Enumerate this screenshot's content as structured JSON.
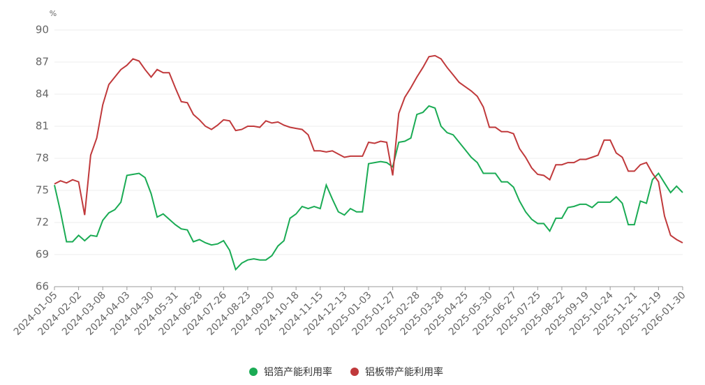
{
  "chart_data": {
    "type": "line",
    "y_unit": "%",
    "categories": [
      "2024-01-05",
      null,
      null,
      null,
      "2024-02-02",
      null,
      null,
      null,
      "2024-03-08",
      null,
      null,
      null,
      "2024-04-03",
      null,
      null,
      null,
      "2024-04-30",
      null,
      null,
      null,
      "2024-05-31",
      null,
      null,
      null,
      "2024-06-28",
      null,
      null,
      null,
      "2024-07-26",
      null,
      null,
      null,
      "2024-08-23",
      null,
      null,
      null,
      "2024-09-20",
      null,
      null,
      null,
      "2024-10-18",
      null,
      null,
      null,
      "2024-11-15",
      null,
      null,
      null,
      "2024-12-13",
      null,
      null,
      null,
      "2025-01-03",
      null,
      null,
      null,
      "2025-01-27",
      null,
      null,
      null,
      "2025-02-28",
      null,
      null,
      null,
      "2025-03-28",
      null,
      null,
      null,
      "2025-04-25",
      null,
      null,
      null,
      "2025-05-30",
      null,
      null,
      null,
      "2025-06-27",
      null,
      null,
      null,
      "2025-07-25",
      null,
      null,
      null,
      "2025-08-22",
      null,
      null,
      null,
      "2025-09-19",
      null,
      null,
      null,
      "2025-10-24",
      null,
      null,
      null,
      "2025-11-21",
      null,
      null,
      null,
      "2025-12-19",
      null,
      null,
      null,
      "2026-01-30"
    ],
    "series": [
      {
        "name": "铝箔产能利用率",
        "color": "#1aab54",
        "values": [
          75.5,
          73.0,
          70.2,
          70.2,
          70.8,
          70.3,
          70.8,
          70.7,
          72.2,
          72.9,
          73.2,
          73.9,
          76.4,
          76.5,
          76.6,
          76.2,
          74.7,
          72.5,
          72.8,
          72.3,
          71.8,
          71.4,
          71.3,
          70.2,
          70.4,
          70.1,
          69.9,
          70.0,
          70.3,
          69.4,
          67.6,
          68.2,
          68.5,
          68.6,
          68.5,
          68.5,
          68.9,
          69.8,
          70.3,
          72.4,
          72.8,
          73.5,
          73.3,
          73.5,
          73.3,
          75.5,
          74.2,
          73.0,
          72.7,
          73.3,
          73.0,
          73.0,
          77.5,
          77.6,
          77.7,
          77.6,
          77.2,
          79.5,
          79.6,
          79.9,
          82.1,
          82.3,
          82.9,
          82.7,
          81.0,
          80.4,
          80.2,
          79.5,
          78.8,
          78.1,
          77.6,
          76.6,
          76.6,
          76.6,
          75.8,
          75.8,
          75.3,
          74.0,
          73.0,
          72.3,
          71.9,
          71.9,
          71.2,
          72.4,
          72.4,
          73.4,
          73.5,
          73.7,
          73.7,
          73.4,
          73.9,
          73.9,
          73.9,
          74.4,
          73.8,
          71.8,
          71.8,
          74.0,
          73.8,
          76.0,
          76.6,
          75.7,
          74.8,
          75.4,
          74.8
        ]
      },
      {
        "name": "铝板带产能利用率",
        "color": "#c0393b",
        "values": [
          75.6,
          75.9,
          75.7,
          76.0,
          75.8,
          72.7,
          78.3,
          79.9,
          83.0,
          84.9,
          85.6,
          86.3,
          86.7,
          87.3,
          87.1,
          86.3,
          85.6,
          86.3,
          86.0,
          86.0,
          84.6,
          83.3,
          83.2,
          82.1,
          81.6,
          81.0,
          80.7,
          81.1,
          81.6,
          81.5,
          80.6,
          80.7,
          81.0,
          81.0,
          80.9,
          81.5,
          81.3,
          81.4,
          81.1,
          80.9,
          80.8,
          80.7,
          80.2,
          78.7,
          78.7,
          78.6,
          78.7,
          78.4,
          78.1,
          78.2,
          78.2,
          78.2,
          79.5,
          79.4,
          79.6,
          79.5,
          76.4,
          82.2,
          83.7,
          84.6,
          85.6,
          86.5,
          87.5,
          87.6,
          87.3,
          86.5,
          85.8,
          85.1,
          84.7,
          84.3,
          83.8,
          82.8,
          80.9,
          80.9,
          80.5,
          80.5,
          80.3,
          78.9,
          78.1,
          77.1,
          76.5,
          76.4,
          76.0,
          77.4,
          77.4,
          77.6,
          77.6,
          77.9,
          77.9,
          78.1,
          78.3,
          79.7,
          79.7,
          78.5,
          78.1,
          76.8,
          76.8,
          77.4,
          77.6,
          76.6,
          75.8,
          72.6,
          70.8,
          70.4,
          70.1
        ]
      }
    ],
    "ylim": [
      66,
      90
    ],
    "yticks": [
      66,
      69,
      72,
      75,
      78,
      81,
      84,
      87,
      90
    ],
    "grid": true,
    "legend": "bottom"
  }
}
